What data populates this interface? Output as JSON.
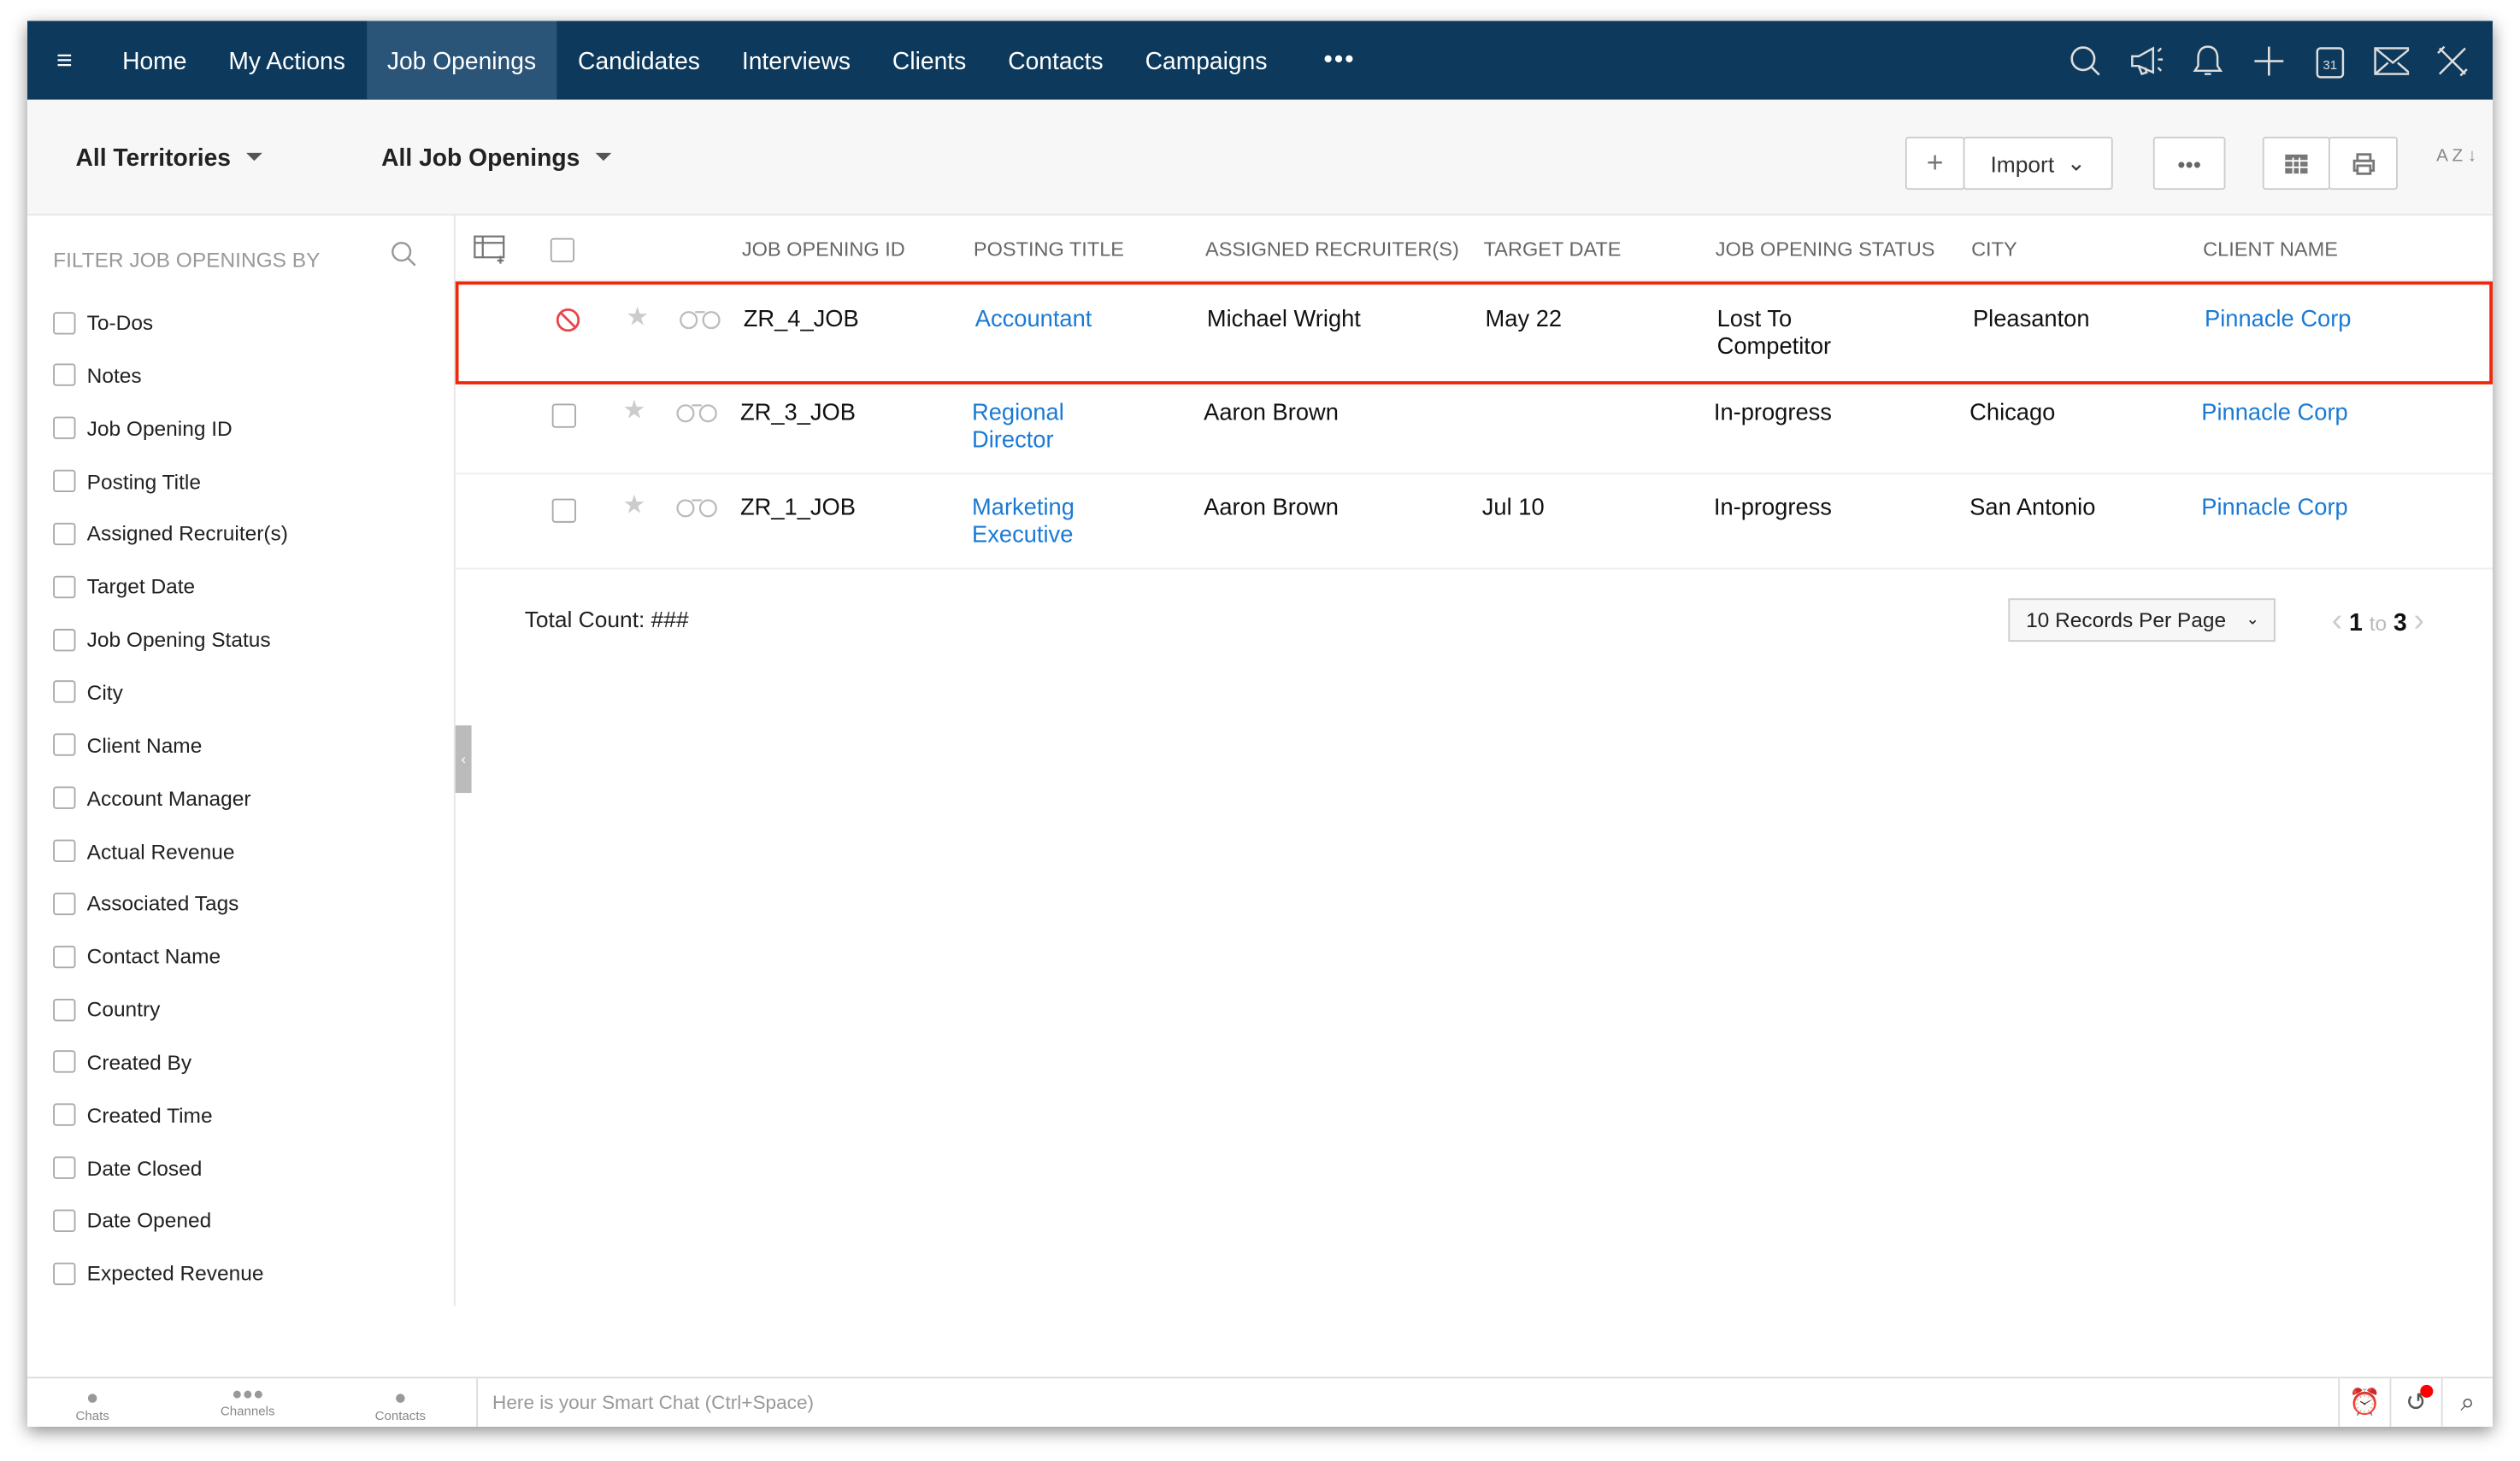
{
  "nav": {
    "tabs": [
      "Home",
      "My Actions",
      "Job Openings",
      "Candidates",
      "Interviews",
      "Clients",
      "Contacts",
      "Campaigns"
    ],
    "active": "Job Openings",
    "more": "•••",
    "icons": [
      "search-icon",
      "megaphone-icon",
      "bell-icon",
      "plus-icon",
      "calendar-icon",
      "mail-icon",
      "tools-icon"
    ],
    "calendar_day": "31"
  },
  "toolbar": {
    "territory": "All Territories",
    "view": "All Job Openings",
    "add": "+",
    "import": "Import",
    "more": "•••",
    "sort": "A Z ↓"
  },
  "sidebar": {
    "heading": "FILTER JOB OPENINGS BY",
    "filters": [
      "To-Dos",
      "Notes",
      "Job Opening ID",
      "Posting Title",
      "Assigned Recruiter(s)",
      "Target Date",
      "Job Opening Status",
      "City",
      "Client Name",
      "Account Manager",
      "Actual Revenue",
      "Associated Tags",
      "Contact Name",
      "Country",
      "Created By",
      "Created Time",
      "Date Closed",
      "Date Opened",
      "Expected Revenue"
    ]
  },
  "table": {
    "columns": [
      "JOB OPENING ID",
      "POSTING TITLE",
      "ASSIGNED RECRUITER(S)",
      "TARGET DATE",
      "JOB OPENING STATUS",
      "CITY",
      "CLIENT NAME"
    ],
    "rows": [
      {
        "id": "ZR_4_JOB",
        "title": "Accountant",
        "recruiter": "Michael Wright",
        "date": "May 22",
        "status": "Lost To Competitor",
        "city": "Pleasanton",
        "client": "Pinnacle Corp",
        "selected": true
      },
      {
        "id": "ZR_3_JOB",
        "title": "Regional Director",
        "recruiter": "Aaron Brown",
        "date": "",
        "status": "In-progress",
        "city": "Chicago",
        "client": "Pinnacle Corp",
        "selected": false
      },
      {
        "id": "ZR_1_JOB",
        "title": "Marketing Executive",
        "recruiter": "Aaron Brown",
        "date": "Jul 10",
        "status": "In-progress",
        "city": "San Antonio",
        "client": "Pinnacle Corp",
        "selected": false
      }
    ]
  },
  "footer_info": {
    "total": "Total Count: ###",
    "per_page": "10 Records Per Page",
    "from": "1",
    "to_word": "to",
    "to": "3"
  },
  "bottom": {
    "chats": "Chats",
    "channels": "Channels",
    "contacts": "Contacts",
    "smart_chat": "Here is your Smart Chat (Ctrl+Space)"
  },
  "colors": {
    "nav": "#0d3a5c",
    "active_tab": "#2a5478",
    "link": "#1a7ad4",
    "highlight": "#f0290a"
  }
}
